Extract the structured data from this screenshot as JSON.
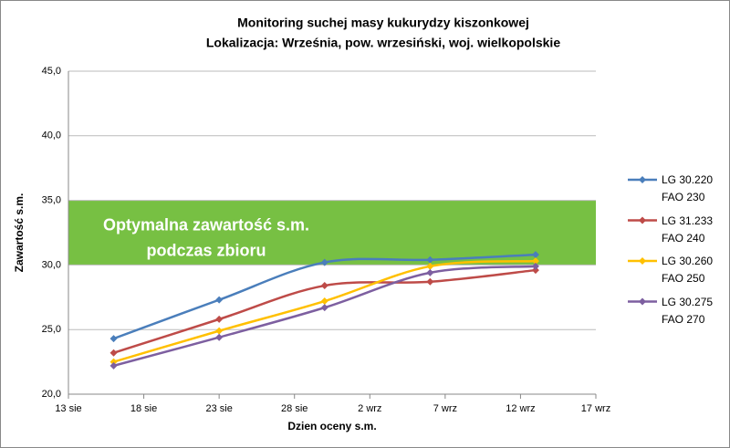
{
  "chart_data": {
    "type": "line",
    "title": "Monitoring suchej masy kukurydzy kiszonkowej",
    "subtitle": "Lokalizacja: Września, pow. wrzesiński, woj. wielkopolskie",
    "x_label": "Dzien oceny s.m.",
    "y_label": "Zawartość s.m.",
    "x": [
      228,
      235,
      242,
      249,
      256
    ],
    "xlim": [
      225,
      260
    ],
    "xticks": [
      {
        "value": 225,
        "label": "13 sie"
      },
      {
        "value": 230,
        "label": "18 sie"
      },
      {
        "value": 235,
        "label": "23 sie"
      },
      {
        "value": 240,
        "label": "28 sie"
      },
      {
        "value": 245,
        "label": "2 wrz"
      },
      {
        "value": 250,
        "label": "7 wrz"
      },
      {
        "value": 255,
        "label": "12 wrz"
      },
      {
        "value": 260,
        "label": "17 wrz"
      }
    ],
    "ylim": [
      20,
      45
    ],
    "yticks": [
      {
        "value": 20,
        "label": "20,0"
      },
      {
        "value": 25,
        "label": "25,0"
      },
      {
        "value": 30,
        "label": "30,0"
      },
      {
        "value": 35,
        "label": "35,0"
      },
      {
        "value": 40,
        "label": "40,0"
      },
      {
        "value": 45,
        "label": "45,0"
      }
    ],
    "grid": true,
    "band": {
      "from": 30,
      "to": 35,
      "color": "#77c043",
      "label": [
        "Optymalna zawartość s.m.",
        "podczas zbioru"
      ]
    },
    "legend": "right",
    "series": [
      {
        "name": "LG 30.220 FAO 230",
        "color": "#4a7ebb",
        "values": [
          24.3,
          27.3,
          30.2,
          30.4,
          30.8
        ]
      },
      {
        "name": "LG 31.233 FAO 240",
        "color": "#be4b48",
        "values": [
          23.2,
          25.8,
          28.4,
          28.7,
          29.6
        ]
      },
      {
        "name": "LG 30.260 FAO 250",
        "color": "#ffc000",
        "values": [
          22.5,
          24.9,
          27.2,
          29.9,
          30.3
        ]
      },
      {
        "name": "LG 30.275 FAO 270",
        "color": "#7d5fa0",
        "values": [
          22.2,
          24.4,
          26.7,
          29.4,
          29.9
        ]
      }
    ]
  }
}
